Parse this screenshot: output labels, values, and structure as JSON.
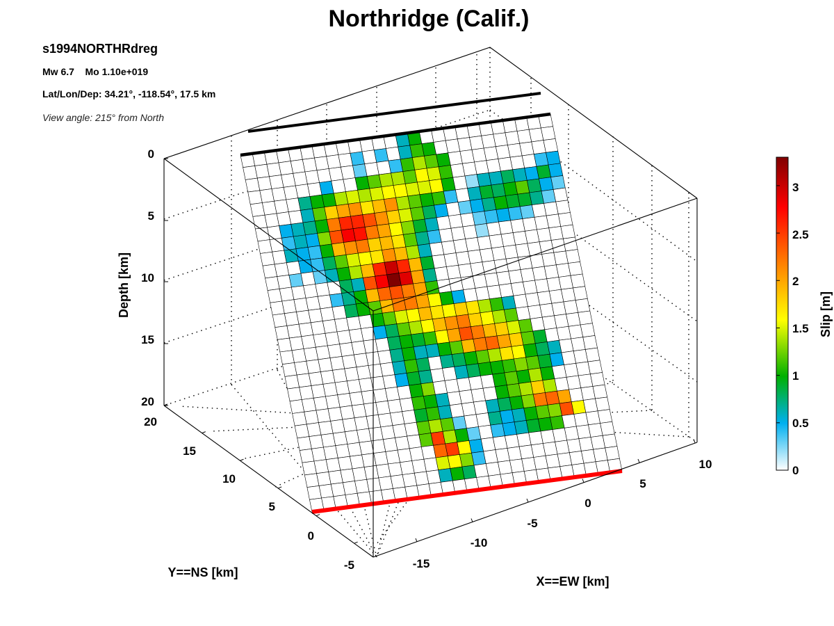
{
  "figure": {
    "title": "Northridge (Calif.)",
    "event_id": "s1994NORTHRdreg",
    "magnitude_line": "Mw 6.7    Mo 1.10e+019",
    "location_line": "Lat/Lon/Dep: 34.21°, -118.54°, 17.5 km",
    "view_line": "View angle: 215° from North"
  },
  "chart_data": {
    "type": "heatmap",
    "title": "Northridge (Calif.)",
    "zlabel": "Depth [km]",
    "ylabel": "Y==NS [km]",
    "xlabel": "X==EW [km]",
    "colorbar_label": "Slip [m]",
    "depth_ticks": [
      "0",
      "5",
      "10",
      "15",
      "20"
    ],
    "ns_ticks": [
      "20",
      "15",
      "10",
      "5",
      "0",
      "-5"
    ],
    "ew_ticks": [
      "-15",
      "-10",
      "-5",
      "0",
      "5",
      "10"
    ],
    "colorbar_ticks": [
      "0",
      "0.5",
      "1",
      "1.5",
      "2",
      "2.5",
      "3"
    ],
    "colorbar_range": [
      0,
      3.3
    ],
    "view_azimuth_deg": 215,
    "colormap": [
      "#ffffff",
      "#00b0f0",
      "#00b000",
      "#ffff00",
      "#ff8000",
      "#ff0000",
      "#800000"
    ],
    "fault_top_color": "#000000",
    "fault_bottom_color": "#ff0000",
    "grid_columns": 26,
    "grid_rows": 29,
    "slip_grid_note": "rows from fault top (row 0) to bottom (row 28), columns along strike from left (0) to right (25)",
    "slip_grid": [
      [
        0,
        0,
        0,
        0,
        0,
        0,
        0,
        0,
        0,
        0,
        0,
        0,
        0,
        0.6,
        1.0,
        0,
        0,
        0,
        0,
        0,
        0,
        0,
        0,
        0,
        0,
        0
      ],
      [
        0,
        0,
        0,
        0,
        0,
        0,
        0,
        0,
        0,
        0.4,
        0,
        0.4,
        0,
        0.6,
        1.1,
        1.0,
        0,
        0,
        0,
        0,
        0,
        0,
        0,
        0,
        0,
        0
      ],
      [
        0,
        0,
        0,
        0,
        0,
        0,
        0,
        0,
        0,
        0.3,
        0,
        0,
        0.4,
        1.1,
        1.4,
        1.2,
        1.0,
        0,
        0,
        0,
        0,
        0,
        0,
        0,
        0,
        0
      ],
      [
        0,
        0,
        0,
        0,
        0,
        0,
        0.5,
        0,
        0,
        1.0,
        1.2,
        1.4,
        1.4,
        1.2,
        1.6,
        1.5,
        1.1,
        0,
        0,
        0,
        0,
        0,
        0,
        0,
        0.4,
        0.5
      ],
      [
        0,
        0,
        0,
        0,
        0.7,
        1.0,
        1.0,
        1.4,
        1.5,
        1.4,
        1.5,
        1.6,
        1.6,
        1.5,
        1.5,
        1.6,
        1.0,
        0,
        0.2,
        0.6,
        0.6,
        0.8,
        0.6,
        0.5,
        0.9,
        0.5
      ],
      [
        0,
        0,
        0,
        0,
        0.6,
        1.2,
        1.8,
        2.0,
        2.1,
        1.7,
        1.9,
        2.1,
        1.4,
        1.2,
        1.0,
        1.1,
        0.4,
        0,
        0.6,
        0.9,
        0.8,
        1.0,
        1.2,
        0.8,
        0.5,
        0.3
      ],
      [
        0,
        0,
        0.5,
        0.6,
        0.7,
        1.0,
        2.2,
        2.6,
        2.6,
        2.4,
        2.1,
        1.8,
        1.5,
        1.2,
        0.8,
        0.5,
        0,
        0.3,
        0.5,
        0.7,
        1.0,
        0.9,
        0.9,
        0.7,
        0.3,
        0
      ],
      [
        0,
        0,
        0.4,
        0.6,
        0.5,
        1.3,
        2.4,
        2.8,
        2.7,
        2.2,
        2.0,
        1.6,
        1.3,
        0.9,
        0.6,
        0,
        0,
        0,
        0.3,
        0.4,
        0.5,
        0.4,
        0.3,
        0,
        0,
        0
      ],
      [
        0,
        0,
        0.6,
        0.5,
        0.4,
        1.0,
        1.9,
        2.1,
        2.2,
        1.8,
        1.9,
        1.7,
        1.2,
        0.7,
        0.4,
        0,
        0,
        0,
        0.2,
        0,
        0,
        0,
        0,
        0,
        0,
        0
      ],
      [
        0,
        0,
        0,
        0.5,
        0.4,
        0.8,
        1.2,
        1.5,
        1.6,
        1.7,
        2.1,
        1.9,
        1.4,
        0.6,
        0,
        0,
        0,
        0,
        0,
        0,
        0,
        0,
        0,
        0,
        0,
        0
      ],
      [
        0,
        0,
        0.3,
        0,
        0.3,
        0.6,
        1.0,
        1.4,
        1.9,
        2.6,
        3.0,
        2.6,
        1.9,
        0.9,
        0,
        0,
        0,
        0,
        0,
        0,
        0,
        0,
        0,
        0,
        0,
        0
      ],
      [
        0,
        0,
        0,
        0,
        0,
        0,
        0.8,
        0.6,
        2.4,
        2.8,
        3.3,
        2.9,
        2.0,
        0.7,
        0,
        0,
        0,
        0,
        0,
        0,
        0,
        0,
        0,
        0,
        0,
        0
      ],
      [
        0,
        0,
        0,
        0,
        0,
        0.4,
        0.7,
        1.0,
        1.9,
        2.3,
        2.4,
        2.2,
        2.0,
        1.1,
        0,
        0,
        0,
        0,
        0,
        0,
        0,
        0,
        0,
        0,
        0,
        0
      ],
      [
        0,
        0,
        0,
        0,
        0,
        0,
        0.8,
        1.0,
        1.2,
        1.9,
        2.2,
        2.2,
        2.0,
        1.6,
        1.0,
        0.5,
        0,
        0,
        0,
        0,
        0,
        0,
        0,
        0,
        0,
        0
      ],
      [
        0,
        0,
        0,
        0,
        0,
        0,
        0,
        0,
        1.0,
        1.2,
        1.5,
        1.6,
        1.9,
        1.7,
        1.6,
        1.8,
        1.7,
        1.4,
        1.1,
        0.6,
        0,
        0,
        0,
        0,
        0,
        0
      ],
      [
        0,
        0,
        0,
        0,
        0,
        0,
        0,
        0,
        0.5,
        0.8,
        1.2,
        1.4,
        1.6,
        1.9,
        2.1,
        2.2,
        1.8,
        1.6,
        1.4,
        1.2,
        0,
        0,
        0,
        0,
        0,
        0
      ],
      [
        0,
        0,
        0,
        0,
        0,
        0,
        0,
        0,
        0,
        0.8,
        1.0,
        0.9,
        1.1,
        1.6,
        2.0,
        2.4,
        2.2,
        1.9,
        1.8,
        1.5,
        1.2,
        0,
        0,
        0,
        0,
        0
      ],
      [
        0,
        0,
        0,
        0,
        0,
        0,
        0,
        0,
        0,
        0.7,
        1.0,
        0.6,
        0.6,
        1.0,
        1.2,
        1.9,
        2.2,
        2.3,
        2.0,
        1.8,
        1.2,
        0.9,
        0,
        0,
        0,
        0
      ],
      [
        0,
        0,
        0,
        0,
        0,
        0,
        0,
        0,
        0,
        0.6,
        1.1,
        0.8,
        0,
        0.7,
        0.8,
        1.0,
        1.2,
        1.4,
        1.7,
        1.6,
        1.0,
        0.8,
        0.6,
        0,
        0,
        0
      ],
      [
        0,
        0,
        0,
        0,
        0,
        0,
        0,
        0,
        0,
        0.5,
        0.9,
        0.7,
        0,
        0,
        0.6,
        0.8,
        1.0,
        1.0,
        1.1,
        1.3,
        1.2,
        0.9,
        0.5,
        0,
        0,
        0
      ],
      [
        0,
        0,
        0,
        0,
        0,
        0,
        0,
        0,
        0,
        0,
        1.0,
        1.3,
        0,
        0,
        0,
        0,
        0,
        1.0,
        1.2,
        1.0,
        1.4,
        1.0,
        0,
        0,
        0,
        0
      ],
      [
        0,
        0,
        0,
        0,
        0,
        0,
        0,
        0,
        0,
        0,
        1.1,
        1.0,
        0.6,
        0,
        0,
        0,
        0,
        1.0,
        1.2,
        1.4,
        1.8,
        1.4,
        0,
        0,
        0,
        0
      ],
      [
        0,
        0,
        0,
        0,
        0,
        0,
        0,
        0,
        0,
        0,
        0.9,
        1.1,
        0.6,
        0,
        0,
        0,
        0.6,
        0.8,
        1.0,
        1.3,
        2.2,
        2.3,
        2.0,
        0,
        0,
        0
      ],
      [
        0,
        0,
        0,
        0,
        0,
        0,
        0,
        0,
        0,
        0,
        1.2,
        1.4,
        1.2,
        0.3,
        0,
        0,
        0.7,
        0.5,
        0.6,
        1.0,
        1.2,
        1.3,
        2.4,
        1.6,
        0,
        0
      ],
      [
        0,
        0,
        0,
        0,
        0,
        0,
        0,
        0,
        0,
        0,
        1.2,
        2.5,
        1.4,
        1.0,
        0.3,
        0,
        0.4,
        0.5,
        0.6,
        0.9,
        1.0,
        1.1,
        0,
        0,
        0,
        0
      ],
      [
        0,
        0,
        0,
        0,
        0,
        0,
        0,
        0,
        0,
        0,
        0,
        2.3,
        2.5,
        1.6,
        0.5,
        0,
        0,
        0,
        0,
        0,
        0,
        0,
        0,
        0,
        0,
        0
      ],
      [
        0,
        0,
        0,
        0,
        0,
        0,
        0,
        0,
        0,
        0,
        0,
        1.5,
        1.6,
        1.3,
        0.4,
        0,
        0,
        0,
        0,
        0,
        0,
        0,
        0,
        0,
        0,
        0
      ],
      [
        0,
        0,
        0,
        0,
        0,
        0,
        0,
        0,
        0,
        0,
        0,
        0.6,
        1.0,
        0.8,
        0,
        0,
        0,
        0,
        0,
        0,
        0,
        0,
        0,
        0,
        0,
        0
      ],
      [
        0,
        0,
        0,
        0,
        0,
        0,
        0,
        0,
        0,
        0,
        0,
        0,
        0,
        0,
        0,
        0,
        0,
        0,
        0,
        0,
        0,
        0,
        0,
        0,
        0,
        0
      ]
    ]
  }
}
